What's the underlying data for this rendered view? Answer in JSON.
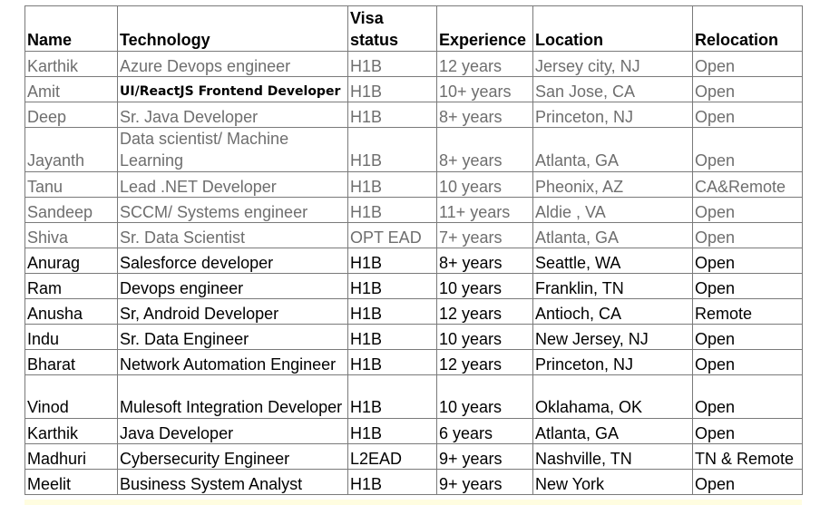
{
  "headers": {
    "name": "Name",
    "technology": "Technology",
    "visa": "Visa status",
    "experience": "Experience",
    "location": "Location",
    "relocation": "Relocation"
  },
  "rows": [
    {
      "name": "Karthik",
      "technology": "Azure Devops engineer",
      "visa": "H1B",
      "experience": "12 years",
      "location": "Jersey city, NJ",
      "relocation": "Open"
    },
    {
      "name": "Amit",
      "technology": "UI/ReactJS Frontend Developer",
      "visa": "H1B",
      "experience": "10+ years",
      "location": "San Jose, CA",
      "relocation": "Open"
    },
    {
      "name": "Deep",
      "technology": "Sr. Java Developer",
      "visa": "H1B",
      "experience": "8+ years",
      "location": "Princeton, NJ",
      "relocation": "Open"
    },
    {
      "name": "Jayanth",
      "technology": "Data scientist/ Machine Learning",
      "visa": "H1B",
      "experience": "8+ years",
      "location": "Atlanta, GA",
      "relocation": "Open"
    },
    {
      "name": "Tanu",
      "technology": "Lead .NET Developer",
      "visa": "H1B",
      "experience": "10 years",
      "location": "Pheonix, AZ",
      "relocation": "CA&Remote"
    },
    {
      "name": "Sandeep",
      "technology": "SCCM/ Systems engineer",
      "visa": "H1B",
      "experience": "11+ years",
      "location": "Aldie , VA",
      "relocation": "Open"
    },
    {
      "name": "Shiva",
      "technology": "Sr. Data Scientist",
      "visa": "OPT EAD",
      "experience": "7+ years",
      "location": "Atlanta, GA",
      "relocation": "Open"
    },
    {
      "name": "Anurag",
      "technology": "Salesforce developer",
      "visa": "H1B",
      "experience": "8+ years",
      "location": "Seattle, WA",
      "relocation": "Open"
    },
    {
      "name": "Ram",
      "technology": "Devops engineer",
      "visa": "H1B",
      "experience": "10 years",
      "location": "Franklin, TN",
      "relocation": "Open"
    },
    {
      "name": "Anusha",
      "technology": "Sr, Android Developer",
      "visa": "H1B",
      "experience": "12 years",
      "location": "Antioch, CA",
      "relocation": "Remote"
    },
    {
      "name": "Indu",
      "technology": "Sr. Data Engineer",
      "visa": "H1B",
      "experience": "10 years",
      "location": "New Jersey, NJ",
      "relocation": "Open"
    },
    {
      "name": "Bharat",
      "technology": "Network Automation Engineer",
      "visa": "H1B",
      "experience": "12 years",
      "location": "Princeton, NJ",
      "relocation": "Open"
    },
    {
      "name": "Vinod",
      "technology": "Mulesoft Integration Developer",
      "visa": "H1B",
      "experience": "10 years",
      "location": "Oklahama, OK",
      "relocation": "Open"
    },
    {
      "name": "Karthik",
      "technology": "Java Developer",
      "visa": "H1B",
      "experience": "6 years",
      "location": "Atlanta, GA",
      "relocation": "Open"
    },
    {
      "name": "Madhuri",
      "technology": "Cybersecurity Engineer",
      "visa": "L2EAD",
      "experience": "9+ years",
      "location": "Nashville, TN",
      "relocation": "TN & Remote"
    },
    {
      "name": "Meelit",
      "technology": "Business System Analyst",
      "visa": "H1B",
      "experience": "9+ years",
      "location": "New York",
      "relocation": "Open"
    }
  ]
}
